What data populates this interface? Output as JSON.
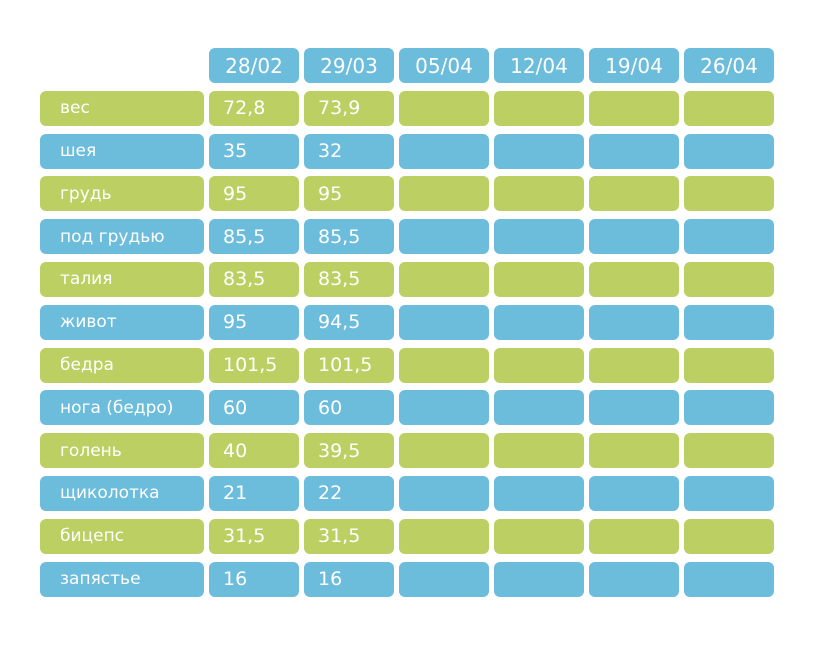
{
  "colors": {
    "blue": "#6cbcdc",
    "green": "#bccf62",
    "text": "#ffffff"
  },
  "chart_data": {
    "type": "table",
    "columns": [
      "28/02",
      "29/03",
      "05/04",
      "12/04",
      "19/04",
      "26/04"
    ],
    "rows": [
      {
        "label": "вес",
        "color": "green",
        "values": [
          "72,8",
          "73,9",
          "",
          "",
          "",
          ""
        ]
      },
      {
        "label": "шея",
        "color": "blue",
        "values": [
          "35",
          "32",
          "",
          "",
          "",
          ""
        ]
      },
      {
        "label": "грудь",
        "color": "green",
        "values": [
          "95",
          "95",
          "",
          "",
          "",
          ""
        ]
      },
      {
        "label": "под грудью",
        "color": "blue",
        "values": [
          "85,5",
          "85,5",
          "",
          "",
          "",
          ""
        ]
      },
      {
        "label": "талия",
        "color": "green",
        "values": [
          "83,5",
          "83,5",
          "",
          "",
          "",
          ""
        ]
      },
      {
        "label": "живот",
        "color": "blue",
        "values": [
          "95",
          "94,5",
          "",
          "",
          "",
          ""
        ]
      },
      {
        "label": "бедра",
        "color": "green",
        "values": [
          "101,5",
          "101,5",
          "",
          "",
          "",
          ""
        ]
      },
      {
        "label": "нога (бедро)",
        "color": "blue",
        "values": [
          "60",
          "60",
          "",
          "",
          "",
          ""
        ]
      },
      {
        "label": "голень",
        "color": "green",
        "values": [
          "40",
          "39,5",
          "",
          "",
          "",
          ""
        ]
      },
      {
        "label": "щиколотка",
        "color": "blue",
        "values": [
          "21",
          "22",
          "",
          "",
          "",
          ""
        ]
      },
      {
        "label": "бицепс",
        "color": "green",
        "values": [
          "31,5",
          "31,5",
          "",
          "",
          "",
          ""
        ]
      },
      {
        "label": "запястье",
        "color": "blue",
        "values": [
          "16",
          "16",
          "",
          "",
          "",
          ""
        ]
      }
    ]
  }
}
